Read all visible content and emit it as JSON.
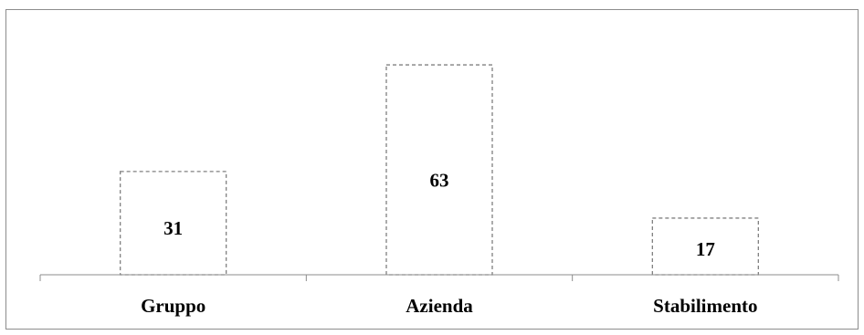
{
  "chart_data": {
    "type": "bar",
    "categories": [
      "Gruppo",
      "Azienda",
      "Stabilimento"
    ],
    "values": [
      31,
      63,
      17
    ],
    "title": "",
    "xlabel": "",
    "ylabel": "",
    "ylim": [
      0,
      70
    ],
    "grid": false,
    "legend": "none",
    "bar_style": "dashed-outline",
    "colors": {
      "bar_outline": "#808080",
      "bar_fill": "#ffffff",
      "axis": "#8c8c8c",
      "frame": "#8c8c8c",
      "text": "#000000"
    }
  }
}
